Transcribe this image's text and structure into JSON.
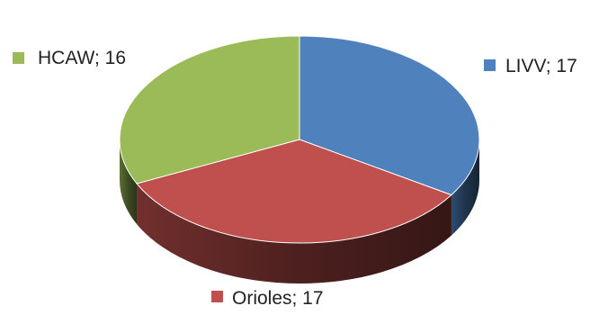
{
  "chart_data": {
    "type": "pie",
    "style": "3d",
    "slices": [
      {
        "label": "LIVV",
        "value": 17,
        "display": "LIVV; 17",
        "color": "#4f81bd"
      },
      {
        "label": "Orioles",
        "value": 17,
        "display": "Orioles; 17",
        "color": "#c0504d"
      },
      {
        "label": "HCAW",
        "value": 16,
        "display": "HCAW; 16",
        "color": "#9bbb59"
      }
    ],
    "label_format": "category; value",
    "legend": "none"
  }
}
